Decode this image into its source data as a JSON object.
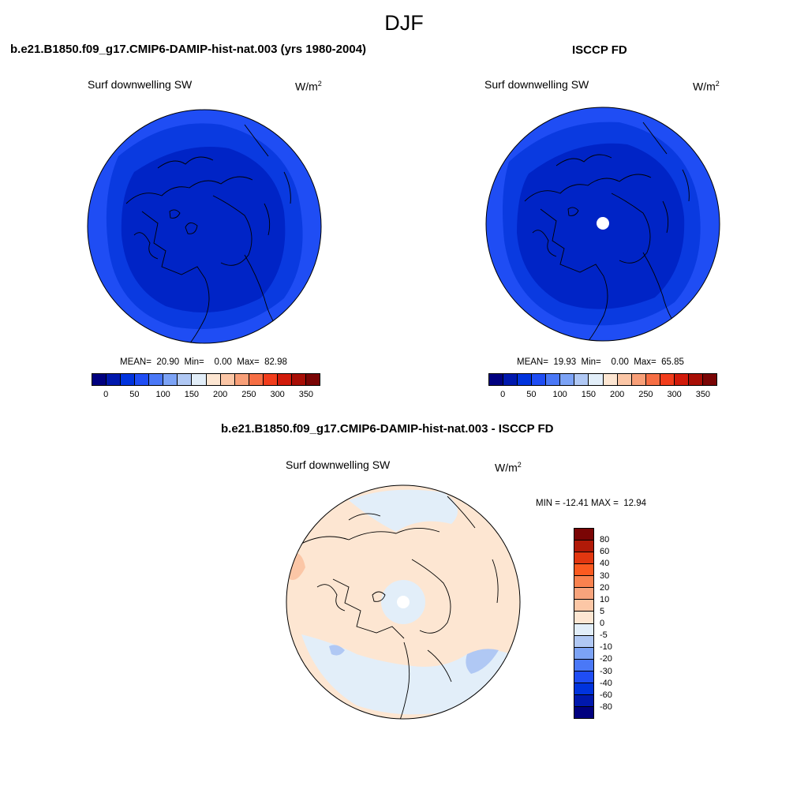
{
  "figure": {
    "season": "DJF"
  },
  "panels": [
    {
      "title": "b.e21.B1850.f09_g17.CMIP6-DAMIP-hist-nat.003 (yrs 1980-2004)",
      "variable": "Surf downwelling SW",
      "units_base": "W/m",
      "units_exp": "2",
      "stats": "MEAN=  20.90  Min=    0.00  Max=  82.98"
    },
    {
      "title": "ISCCP FD",
      "variable": "Surf downwelling SW",
      "units_base": "W/m",
      "units_exp": "2",
      "stats": "MEAN=  19.93  Min=    0.00  Max=  65.85"
    },
    {
      "title": "b.e21.B1850.f09_g17.CMIP6-DAMIP-hist-nat.003 - ISCCP FD",
      "variable": "Surf downwelling SW",
      "units_base": "W/m",
      "units_exp": "2",
      "stats": "MIN = -12.41 MAX =  12.94"
    }
  ],
  "colorbars": {
    "absolute": {
      "labels": [
        "0",
        "50",
        "100",
        "150",
        "200",
        "250",
        "300",
        "350"
      ],
      "colors": [
        "#00007f",
        "#0018ad",
        "#0033dd",
        "#1f4df4",
        "#4a78f7",
        "#7ca3f6",
        "#b0c8f4",
        "#e2eef9",
        "#fde6d2",
        "#fbc6a6",
        "#f89f78",
        "#f66e44",
        "#f23d1c",
        "#d11a0a",
        "#a80e06",
        "#7a0505"
      ]
    },
    "difference": {
      "labels": [
        "80",
        "60",
        "40",
        "30",
        "20",
        "10",
        "5",
        "0",
        "-5",
        "-10",
        "-20",
        "-30",
        "-40",
        "-60",
        "-80"
      ],
      "colors": [
        "#7a0505",
        "#b11a08",
        "#e23710",
        "#fb5a20",
        "#f9824f",
        "#f8a47c",
        "#fcc7a6",
        "#fde6d2",
        "#e2eef9",
        "#b0c8f4",
        "#7ca3f6",
        "#4a78f7",
        "#1f4df4",
        "#0033dd",
        "#0018ad",
        "#00007f"
      ]
    }
  },
  "map_colors": {
    "outer_ring": "#1f4df4",
    "middle_ring": "#0a3ae0",
    "inner_core": "#0024c6",
    "diff_base": "#fde6d2",
    "diff_neg": "#e2eef9",
    "diff_neg2": "#b0c8f4",
    "diff_pos": "#fbc6a6",
    "missing": "#ffffff"
  }
}
